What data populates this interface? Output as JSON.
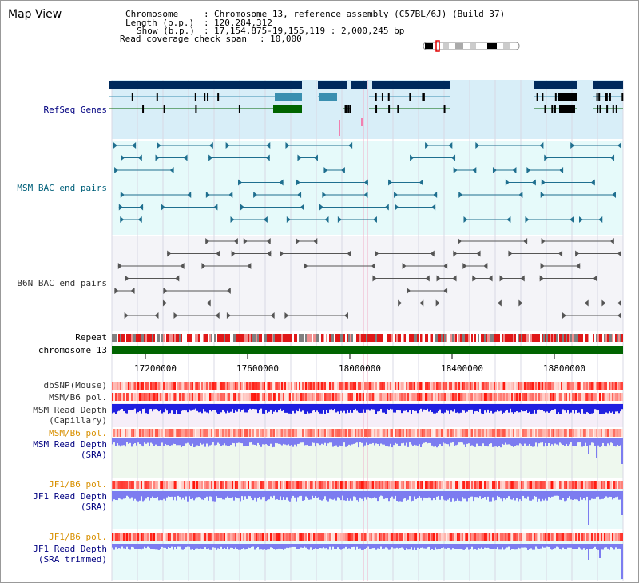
{
  "page": {
    "title": "Map View"
  },
  "info": {
    "chromosome_key": "Chromosome",
    "chromosome_value": "Chromosome 13, reference assembly (C57BL/6J) (Build 37)",
    "length_key": "Length (b.p.)",
    "length_value": "120,284,312",
    "show_key": "Show (b.p.)",
    "show_value": "17,154,875-19,155,119 : 2,000,245 bp",
    "span_key": "Read coverage check span",
    "span_value": "10,000"
  },
  "tracks": {
    "refseq": "RefSeq Genes",
    "msm_bac": "MSM BAC end pairs",
    "b6n_bac": "B6N BAC end pairs",
    "repeat": "Repeat",
    "chromosome": "chromosome 13",
    "dbsnp": "dbSNP(Mouse)",
    "msm_b6_pol": "MSM/B6 pol.",
    "msm_depth_cap_1": "MSM Read Depth",
    "msm_depth_cap_2": "(Capillary)",
    "msm_b6_pol_2": "MSM/B6 pol.",
    "msm_depth_sra_1": "MSM Read Depth",
    "msm_depth_sra_2": "(SRA)",
    "jf1_b6_pol": "JF1/B6 pol.",
    "jf1_depth_sra_1": "JF1 Read Depth",
    "jf1_depth_sra_2": "(SRA)",
    "jf1_b6_pol_2": "JF1/B6 pol.",
    "jf1_depth_trim_1": "JF1 Read Depth",
    "jf1_depth_trim_2": "(SRA trimmed)"
  },
  "axis": {
    "ticks": [
      "17200000",
      "17600000",
      "18000000",
      "18400000",
      "18800000"
    ]
  },
  "colors": {
    "refseq_bg": "#d8eef8",
    "gene_dark": "#002a5c",
    "gene_teal": "#3a8fb0",
    "gene_green": "#006400",
    "msm_bg": "#e6fafa",
    "msm_line": "#1f6f8f",
    "b6n_line": "#555555",
    "chromosome_bar": "#006400",
    "depth_blue": "#2020e0",
    "depth_light": "#7c7cf0",
    "pol_red": "#e03030"
  }
}
